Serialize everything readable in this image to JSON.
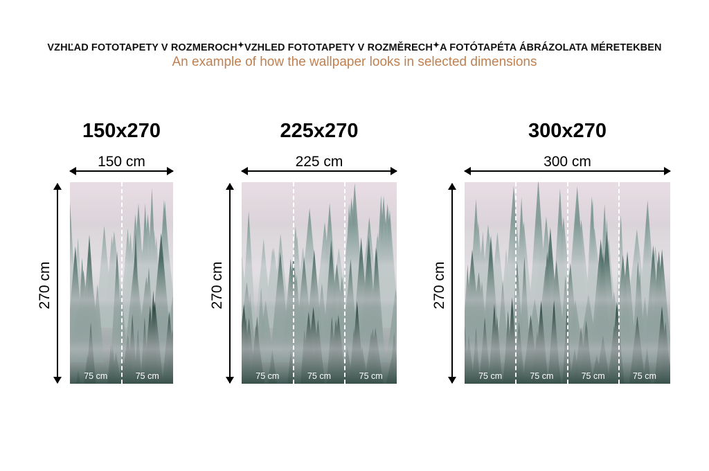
{
  "header": {
    "parts": [
      "VZHĽAD FOTOTAPETY V ROZMEROCH",
      "VZHLED FOTOTAPETY V ROZMĚRECH",
      "A FOTÓTAPÉTA ÁBRÁZOLATA MÉRETEKBEN"
    ],
    "separator": "✦",
    "subtitle": "An example of how the wallpaper looks in selected dimensions"
  },
  "colors": {
    "subtitle": "#c0804f",
    "sky": "#e9dde4",
    "forest": "#2c4741"
  },
  "panels": [
    {
      "title": "150x270",
      "width_label": "150 cm",
      "height_label": "270 cm",
      "strips": [
        "75 cm",
        "75 cm"
      ]
    },
    {
      "title": "225x270",
      "width_label": "225 cm",
      "height_label": "270 cm",
      "strips": [
        "75 cm",
        "75 cm",
        "75 cm"
      ]
    },
    {
      "title": "300x270",
      "width_label": "300 cm",
      "height_label": "270 cm",
      "strips": [
        "75 cm",
        "75 cm",
        "75 cm",
        "75 cm"
      ]
    }
  ]
}
